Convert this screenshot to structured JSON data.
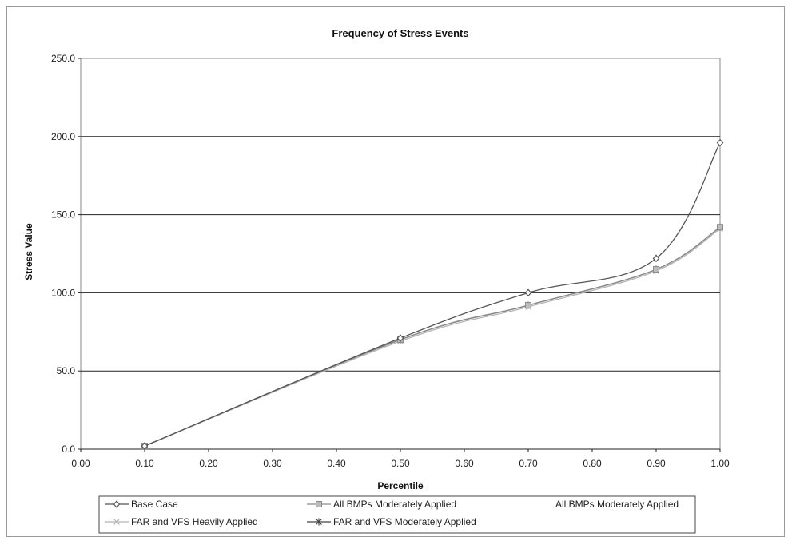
{
  "chart_data": {
    "type": "line",
    "title": "Frequency of Stress Events",
    "xlabel": "Percentile",
    "ylabel": "Stress Value",
    "xlim": [
      0.0,
      1.0
    ],
    "ylim": [
      0.0,
      250.0
    ],
    "x_ticks": [
      "0.00",
      "0.10",
      "0.20",
      "0.30",
      "0.40",
      "0.50",
      "0.60",
      "0.70",
      "0.80",
      "0.90",
      "1.00"
    ],
    "y_ticks": [
      "0.0",
      "50.0",
      "100.0",
      "150.0",
      "200.0",
      "250.0"
    ],
    "grid": "horizontal",
    "legend_position": "bottom",
    "series": [
      {
        "name": "Base Case",
        "x": [
          0.1,
          0.5,
          0.7,
          0.9,
          1.0
        ],
        "y": [
          2.0,
          71.0,
          100.0,
          122.0,
          196.0
        ],
        "color": "#555555",
        "marker": "diamond"
      },
      {
        "name": "All BMPs Moderately Applied",
        "x": [
          0.1,
          0.5,
          0.7,
          0.9,
          1.0
        ],
        "y": [
          2.0,
          70.0,
          92.0,
          115.0,
          142.0
        ],
        "color": "#8a8a8a",
        "marker": "square"
      },
      {
        "name": "All BMPs Moderately Applied",
        "x": [
          0.1,
          0.5,
          0.7,
          0.9,
          1.0
        ],
        "y": [
          2.0,
          70.0,
          92.0,
          115.0,
          142.0
        ],
        "color": "#a0a0a0",
        "marker": "none"
      },
      {
        "name": "FAR and VFS Heavily Applied",
        "x": [
          0.1,
          0.5,
          0.7,
          0.9,
          1.0
        ],
        "y": [
          2.0,
          69.0,
          91.0,
          114.0,
          141.0
        ],
        "color": "#b5b5b5",
        "marker": "x"
      },
      {
        "name": "FAR and VFS Moderately Applied",
        "x": [
          0.1,
          0.5,
          0.7,
          0.9,
          1.0
        ],
        "y": [
          2.0,
          70.0,
          92.0,
          115.0,
          142.0
        ],
        "color": "#444444",
        "marker": "star"
      }
    ]
  }
}
